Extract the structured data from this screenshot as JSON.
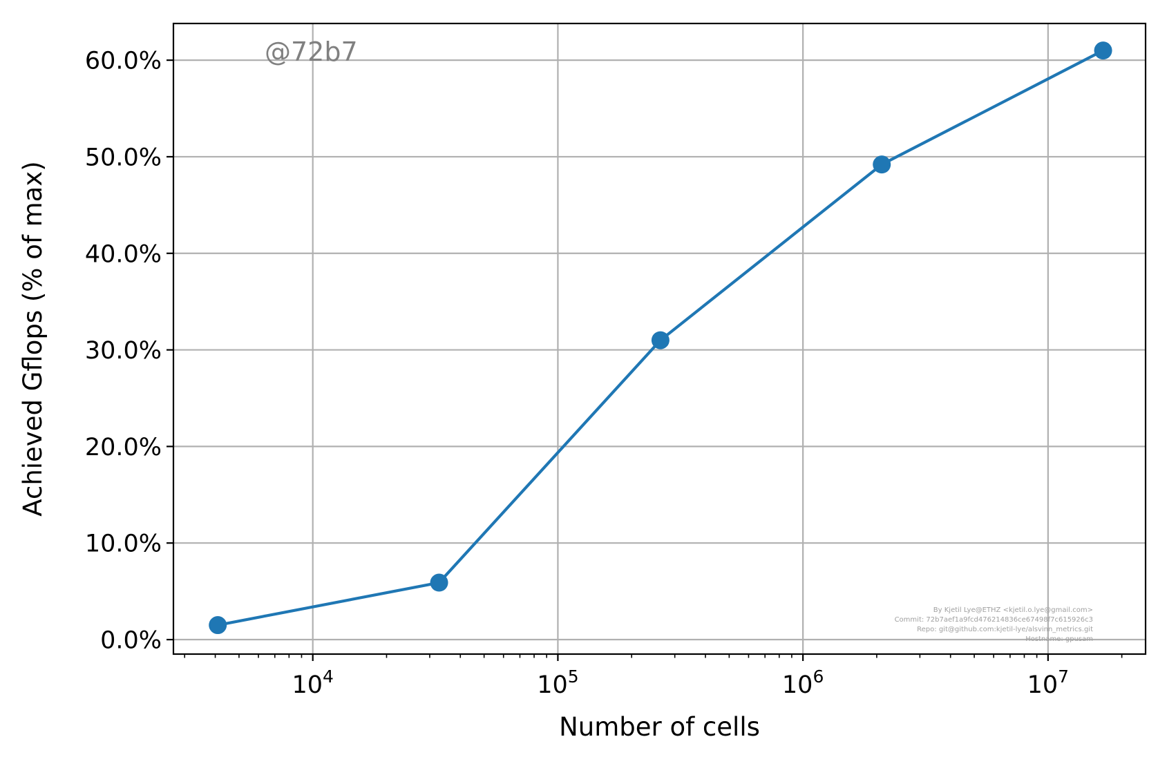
{
  "chart_data": {
    "type": "line",
    "xscale": "log",
    "xlabel": "Number of cells",
    "ylabel": "Achieved Gflops (% of max)",
    "xlim": [
      2700,
      25000000
    ],
    "ylim": [
      -1.5,
      63.8
    ],
    "grid": true,
    "x_ticks": [
      {
        "value": 10000,
        "base": "10",
        "exp": "4"
      },
      {
        "value": 100000,
        "base": "10",
        "exp": "5"
      },
      {
        "value": 1000000,
        "base": "10",
        "exp": "6"
      },
      {
        "value": 10000000,
        "base": "10",
        "exp": "7"
      }
    ],
    "y_ticks": [
      {
        "value": 0,
        "label": "0.0%"
      },
      {
        "value": 10,
        "label": "10.0%"
      },
      {
        "value": 20,
        "label": "20.0%"
      },
      {
        "value": 30,
        "label": "30.0%"
      },
      {
        "value": 40,
        "label": "40.0%"
      },
      {
        "value": 50,
        "label": "50.0%"
      },
      {
        "value": 60,
        "label": "60.0%"
      }
    ],
    "series": [
      {
        "color": "#1f77b4",
        "marker": "circle",
        "points": [
          {
            "x": 4096,
            "y": 1.5
          },
          {
            "x": 32768,
            "y": 5.9
          },
          {
            "x": 262144,
            "y": 31.0
          },
          {
            "x": 2097152,
            "y": 49.2
          },
          {
            "x": 16777216,
            "y": 61.0
          }
        ]
      }
    ],
    "watermark": {
      "text": "@72b7",
      "color": "#808080"
    },
    "credits": [
      "By Kjetil Lye@ETHZ <kjetil.o.lye@gmail.com>",
      "Commit: 72b7aef1a9fcd476214836ce67498f7c615926c3",
      "Repo: git@github.com:kjetil-lye/alsvinn_metrics.git",
      "Hostname: gpusam"
    ]
  }
}
